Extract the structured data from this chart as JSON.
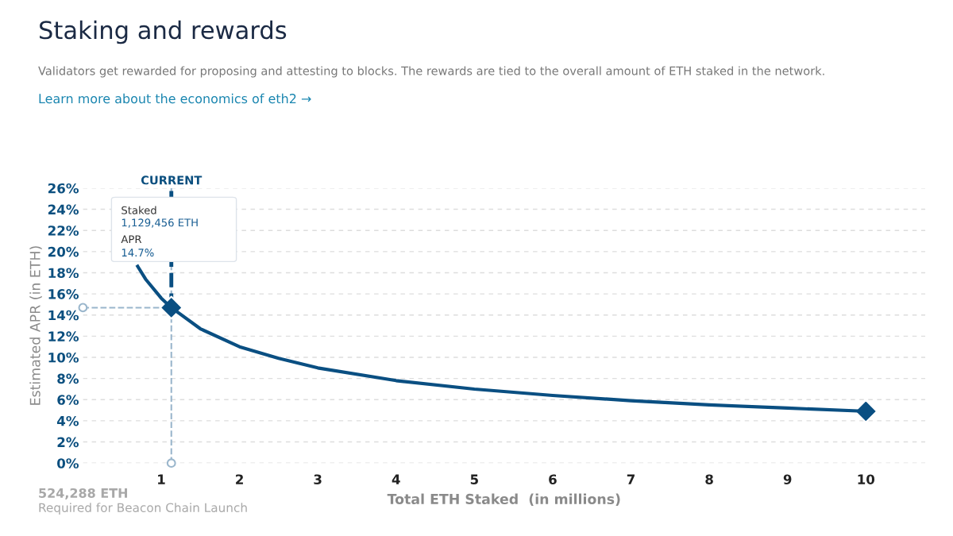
{
  "chart_data": {
    "type": "line",
    "title": "Staking and rewards",
    "subtitle": "Validators get rewarded for proposing and attesting to blocks. The rewards are tied to the overall amount of ETH staked in the network.\nLearn more about the economics of eth2 →",
    "xlabel": "Total ETH Staked  (in millions)",
    "ylabel": "Estimated APR (in ETH)",
    "series": [
      {
        "color": "#0a4f82",
        "x": [
          0.7,
          0.8,
          1.0,
          1.129456,
          1.5,
          2,
          2.5,
          3,
          4,
          5,
          6,
          7,
          8,
          9,
          10
        ],
        "values": [
          18.6,
          17.4,
          15.6,
          14.7,
          12.7,
          11.0,
          9.9,
          9.0,
          7.8,
          7.0,
          6.4,
          5.9,
          5.5,
          5.2,
          4.9
        ]
      },
      {
        "type": "scatter",
        "color": "#0a4f82",
        "marker": "diamond",
        "x": [
          1.129456,
          10
        ],
        "values": [
          14.7,
          4.9
        ]
      }
    ],
    "xlim": [
      0,
      10.76
    ],
    "xticks": [
      1,
      2,
      3,
      4,
      5,
      6,
      7,
      8,
      9,
      10
    ],
    "ylim": [
      0,
      26
    ],
    "yticks": [
      {
        "value": 0,
        "label": "0%"
      },
      {
        "value": 2,
        "label": "2%"
      },
      {
        "value": 4,
        "label": "4%"
      },
      {
        "value": 6,
        "label": "6%"
      },
      {
        "value": 8,
        "label": "8%"
      },
      {
        "value": 10,
        "label": "10%"
      },
      {
        "value": 12,
        "label": "12%"
      },
      {
        "value": 14,
        "label": "14%"
      },
      {
        "value": 16,
        "label": "16%"
      },
      {
        "value": 18,
        "label": "18%"
      },
      {
        "value": 20,
        "label": "20%"
      },
      {
        "value": 22,
        "label": "22%"
      },
      {
        "value": 24,
        "label": "24%"
      },
      {
        "value": 26,
        "label": "26%"
      }
    ],
    "grid": "y",
    "ref_lines": [
      {
        "axis": "x",
        "value": 1.129456,
        "label": "CURRENT",
        "color": "#9ab6cc",
        "line_style": "dashed"
      },
      {
        "axis": "y",
        "value": 14.7,
        "color": "#9ab6cc",
        "line_style": "dashed"
      }
    ],
    "annotations": [
      "Staked",
      "1,129,456 ETH",
      "APR",
      "14.7%",
      "524,288 ETH",
      "Required for Beacon Chain Launch"
    ],
    "legend": false
  }
}
